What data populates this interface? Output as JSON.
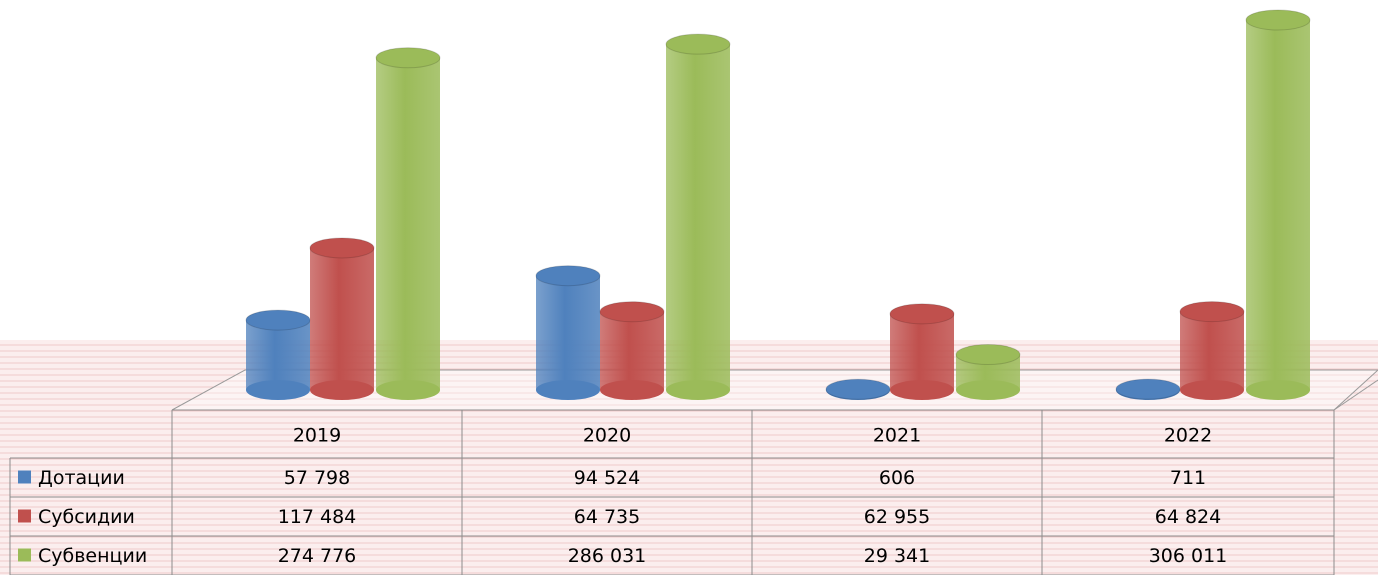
{
  "chart_data": {
    "type": "bar3d",
    "categories": [
      "2019",
      "2020",
      "2021",
      "2022"
    ],
    "series": [
      {
        "name": "Дотации",
        "color": "#4f81bd",
        "values": [
          57798,
          94524,
          606,
          711
        ],
        "value_labels": [
          "57 798",
          "94 524",
          "606",
          "711"
        ]
      },
      {
        "name": "Субсидии",
        "color": "#c0504d",
        "values": [
          117484,
          64735,
          62955,
          64824
        ],
        "value_labels": [
          "117 484",
          "64 735",
          "62 955",
          "64 824"
        ]
      },
      {
        "name": "Субвенции",
        "color": "#9bbb59",
        "values": [
          274776,
          286031,
          29341,
          306011
        ],
        "value_labels": [
          "274 776",
          "286 031",
          "29 341",
          "306 011"
        ]
      }
    ]
  }
}
